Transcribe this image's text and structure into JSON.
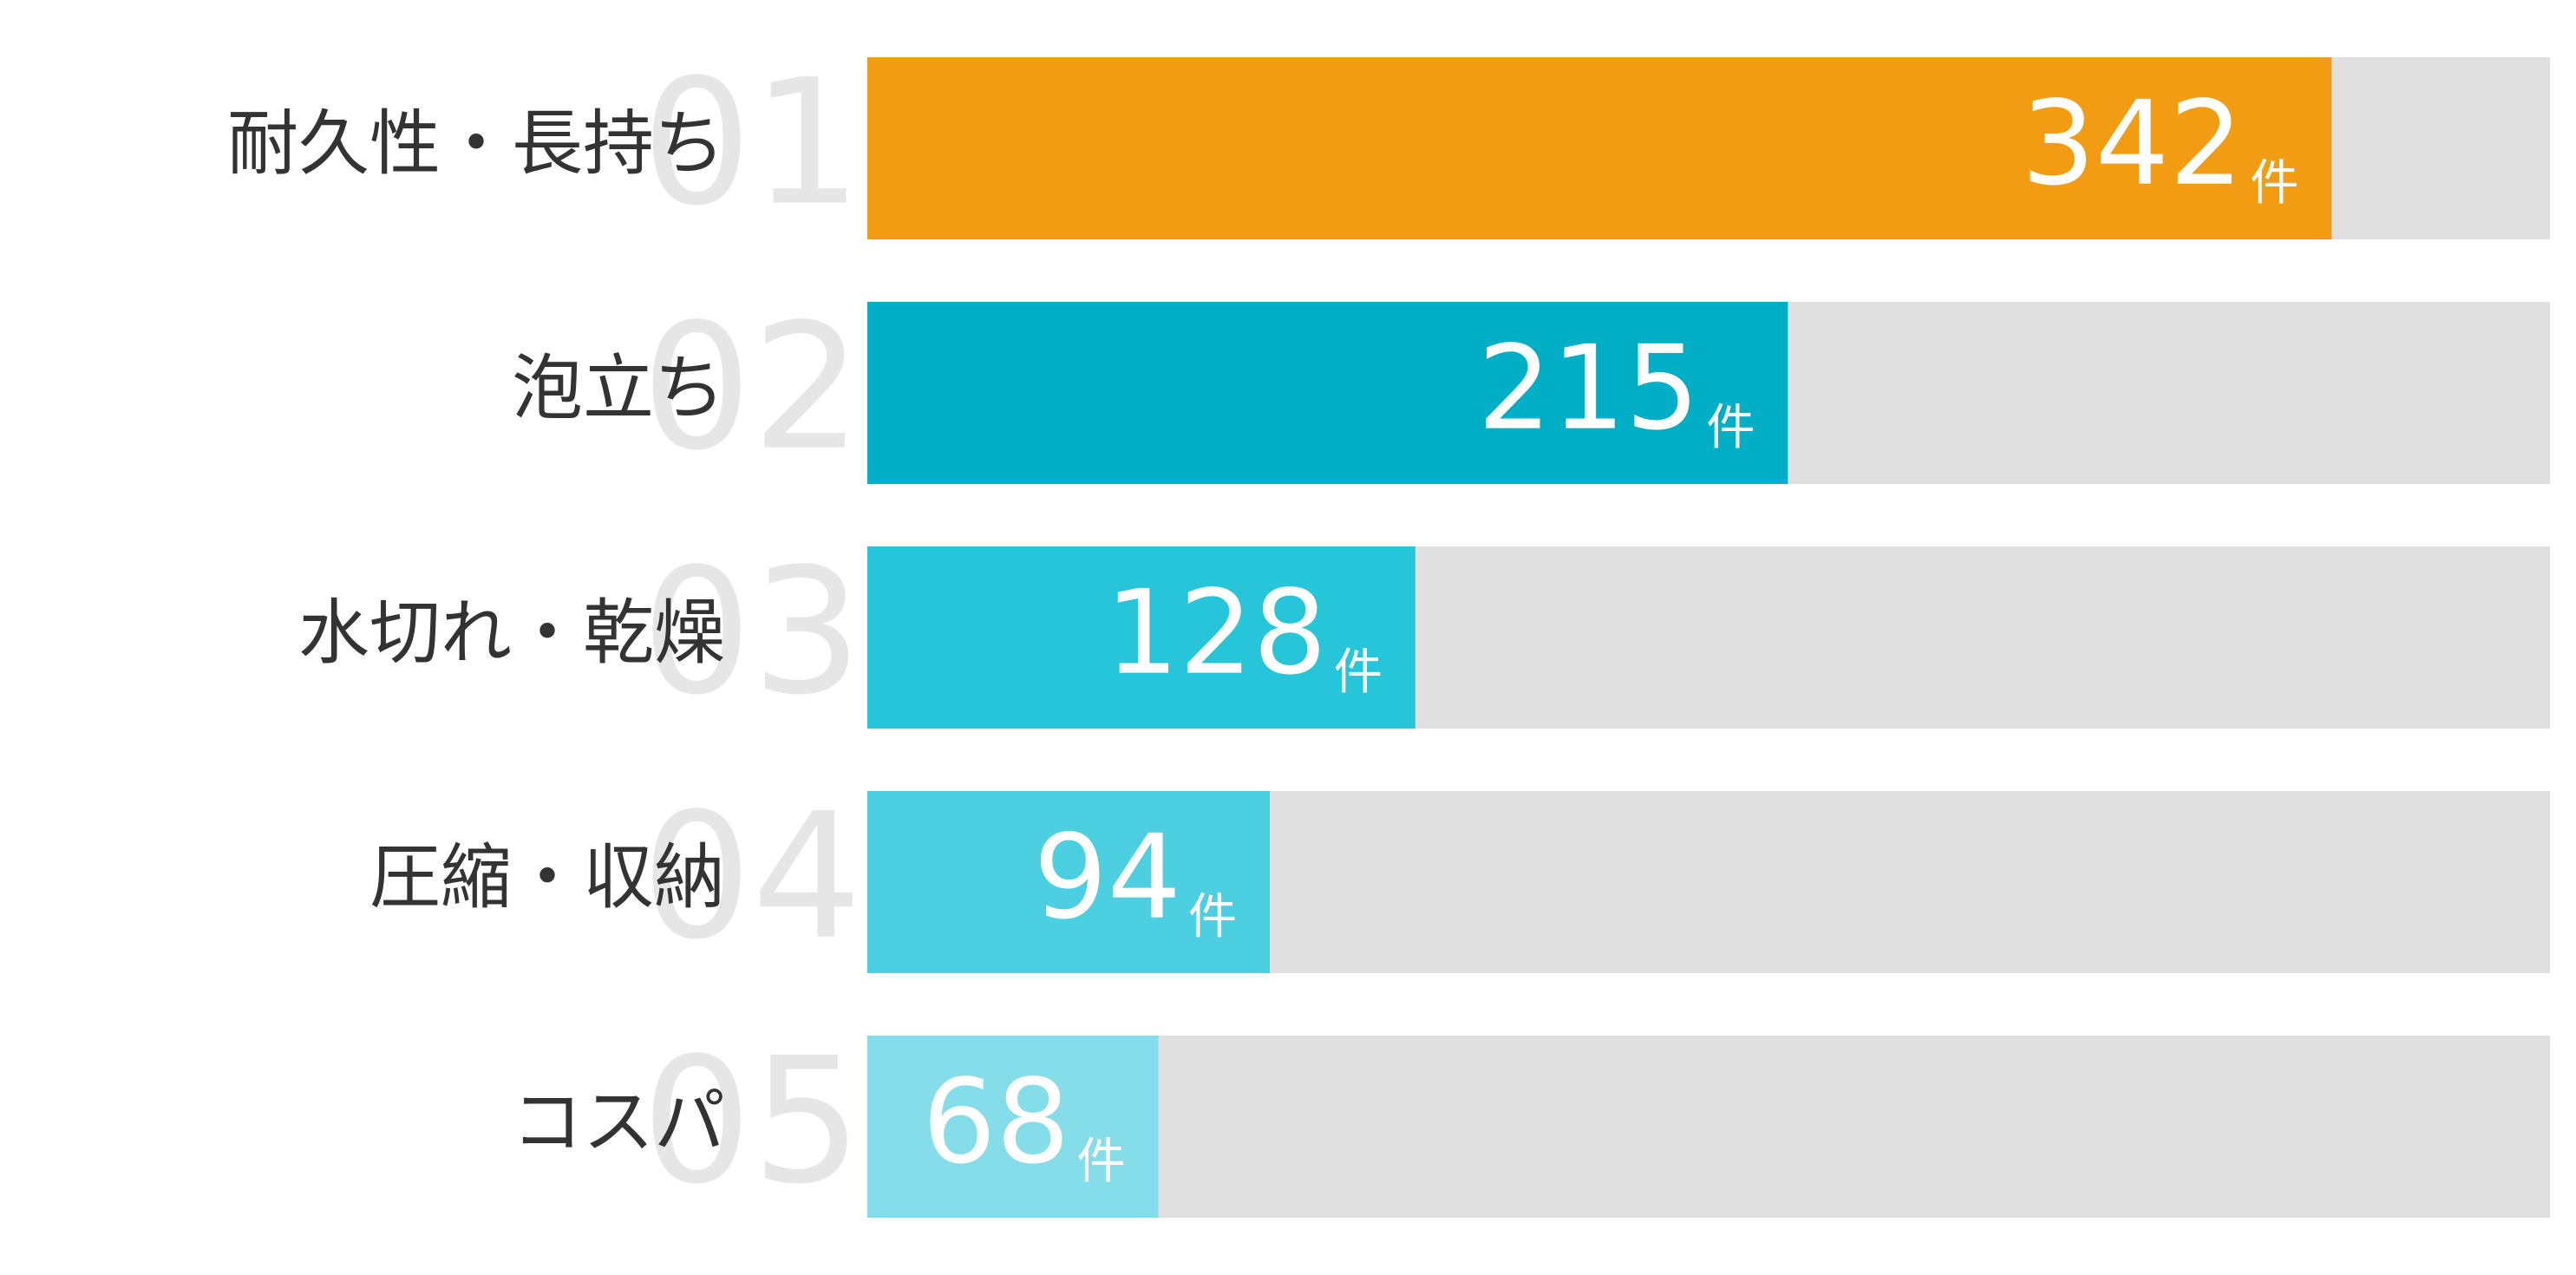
{
  "chart_data": {
    "type": "bar",
    "orientation": "horizontal",
    "categories": [
      "耐久性・長持ち",
      "泡立ち",
      "水切れ・乾燥",
      "圧縮・収納",
      "コスパ"
    ],
    "ranks": [
      "01",
      "02",
      "03",
      "04",
      "05"
    ],
    "values": [
      342,
      215,
      128,
      94,
      68
    ],
    "unit": "件",
    "colors": [
      "#f29c14",
      "#00aec6",
      "#27c5da",
      "#4dcfe2",
      "#85dde9"
    ],
    "track_color": "#e0e0e0",
    "xlim": [
      0,
      393
    ]
  }
}
